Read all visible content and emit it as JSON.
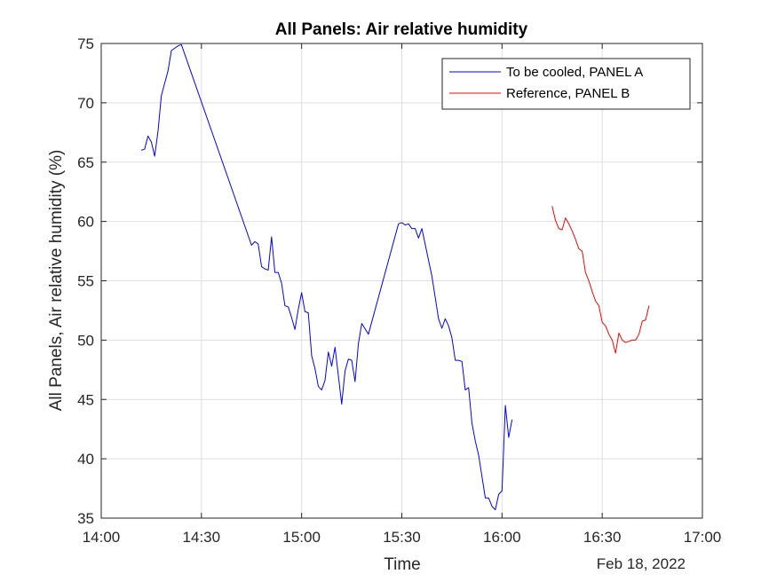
{
  "chart_data": {
    "type": "line",
    "title": "All Panels: Air relative humidity",
    "xlabel": "Time",
    "ylabel": "All Panels, Air relative humidity (%)",
    "date_label": "Feb 18, 2022",
    "xlim": [
      "14:00",
      "17:00"
    ],
    "ylim": [
      35,
      75
    ],
    "xticks": [
      "14:00",
      "14:30",
      "15:00",
      "15:30",
      "16:00",
      "16:30",
      "17:00"
    ],
    "yticks": [
      35,
      40,
      45,
      50,
      55,
      60,
      65,
      70,
      75
    ],
    "grid": true,
    "legend": "top-right",
    "series": [
      {
        "name": "To be cooled, PANEL A",
        "color": "#0000ff",
        "points": [
          [
            "14:12",
            66.0
          ],
          [
            "14:13",
            66.1
          ],
          [
            "14:14",
            67.2
          ],
          [
            "14:15",
            66.7
          ],
          [
            "14:16",
            65.5
          ],
          [
            "14:17",
            67.6
          ],
          [
            "14:18",
            70.6
          ],
          [
            "14:20",
            72.7
          ],
          [
            "14:21",
            74.4
          ],
          [
            "14:22",
            74.6
          ],
          [
            "14:23",
            74.8
          ],
          [
            "14:24",
            74.9
          ],
          [
            "14:45",
            58.0
          ],
          [
            "14:46",
            58.3
          ],
          [
            "14:47",
            58.1
          ],
          [
            "14:48",
            56.2
          ],
          [
            "14:49",
            56.0
          ],
          [
            "14:50",
            55.9
          ],
          [
            "14:51",
            58.7
          ],
          [
            "14:52",
            55.7
          ],
          [
            "14:53",
            55.7
          ],
          [
            "14:54",
            54.8
          ],
          [
            "14:55",
            52.9
          ],
          [
            "14:56",
            52.8
          ],
          [
            "14:57",
            51.9
          ],
          [
            "14:58",
            50.9
          ],
          [
            "14:59",
            52.6
          ],
          [
            "15:00",
            54.0
          ],
          [
            "15:01",
            52.4
          ],
          [
            "15:02",
            52.3
          ],
          [
            "15:03",
            48.7
          ],
          [
            "15:04",
            47.6
          ],
          [
            "15:05",
            46.1
          ],
          [
            "15:06",
            45.8
          ],
          [
            "15:07",
            46.6
          ],
          [
            "15:08",
            49.0
          ],
          [
            "15:09",
            47.8
          ],
          [
            "15:10",
            49.4
          ],
          [
            "15:11",
            47.0
          ],
          [
            "15:12",
            44.6
          ],
          [
            "15:13",
            47.4
          ],
          [
            "15:14",
            48.4
          ],
          [
            "15:15",
            48.3
          ],
          [
            "15:16",
            46.5
          ],
          [
            "15:17",
            49.7
          ],
          [
            "15:18",
            51.4
          ],
          [
            "15:20",
            50.5
          ],
          [
            "15:29",
            59.8
          ],
          [
            "15:30",
            59.9
          ],
          [
            "15:31",
            59.7
          ],
          [
            "15:32",
            59.8
          ],
          [
            "15:33",
            59.4
          ],
          [
            "15:34",
            59.4
          ],
          [
            "15:35",
            58.6
          ],
          [
            "15:36",
            59.4
          ],
          [
            "15:39",
            55.4
          ],
          [
            "15:41",
            51.8
          ],
          [
            "15:42",
            51.0
          ],
          [
            "15:43",
            51.8
          ],
          [
            "15:44",
            51.2
          ],
          [
            "15:45",
            50.2
          ],
          [
            "15:46",
            48.3
          ],
          [
            "15:47",
            48.3
          ],
          [
            "15:48",
            48.2
          ],
          [
            "15:49",
            45.8
          ],
          [
            "15:50",
            46.0
          ],
          [
            "15:51",
            43.0
          ],
          [
            "15:52",
            41.5
          ],
          [
            "15:53",
            40.3
          ],
          [
            "15:54",
            38.5
          ],
          [
            "15:55",
            36.7
          ],
          [
            "15:56",
            36.7
          ],
          [
            "15:57",
            36.0
          ],
          [
            "15:58",
            35.7
          ],
          [
            "15:59",
            37.0
          ],
          [
            "16:00",
            37.3
          ],
          [
            "16:01",
            44.5
          ],
          [
            "16:02",
            41.8
          ],
          [
            "16:03",
            43.3
          ]
        ]
      },
      {
        "name": "Reference, PANEL B",
        "color": "#ff0000",
        "points": [
          [
            "16:15",
            61.3
          ],
          [
            "16:16",
            60.1
          ],
          [
            "16:17",
            59.4
          ],
          [
            "16:18",
            59.3
          ],
          [
            "16:19",
            60.3
          ],
          [
            "16:20",
            59.8
          ],
          [
            "16:21",
            59.2
          ],
          [
            "16:22",
            58.5
          ],
          [
            "16:23",
            57.7
          ],
          [
            "16:24",
            57.5
          ],
          [
            "16:25",
            55.7
          ],
          [
            "16:26",
            55.0
          ],
          [
            "16:27",
            54.1
          ],
          [
            "16:28",
            53.3
          ],
          [
            "16:29",
            52.9
          ],
          [
            "16:30",
            51.5
          ],
          [
            "16:31",
            51.2
          ],
          [
            "16:32",
            50.5
          ],
          [
            "16:33",
            50.0
          ],
          [
            "16:34",
            48.9
          ],
          [
            "16:35",
            50.6
          ],
          [
            "16:36",
            50.0
          ],
          [
            "16:37",
            49.8
          ],
          [
            "16:38",
            49.9
          ],
          [
            "16:39",
            50.0
          ],
          [
            "16:40",
            50.0
          ],
          [
            "16:41",
            50.5
          ],
          [
            "16:42",
            51.6
          ],
          [
            "16:43",
            51.7
          ],
          [
            "16:44",
            52.9
          ]
        ]
      }
    ]
  }
}
